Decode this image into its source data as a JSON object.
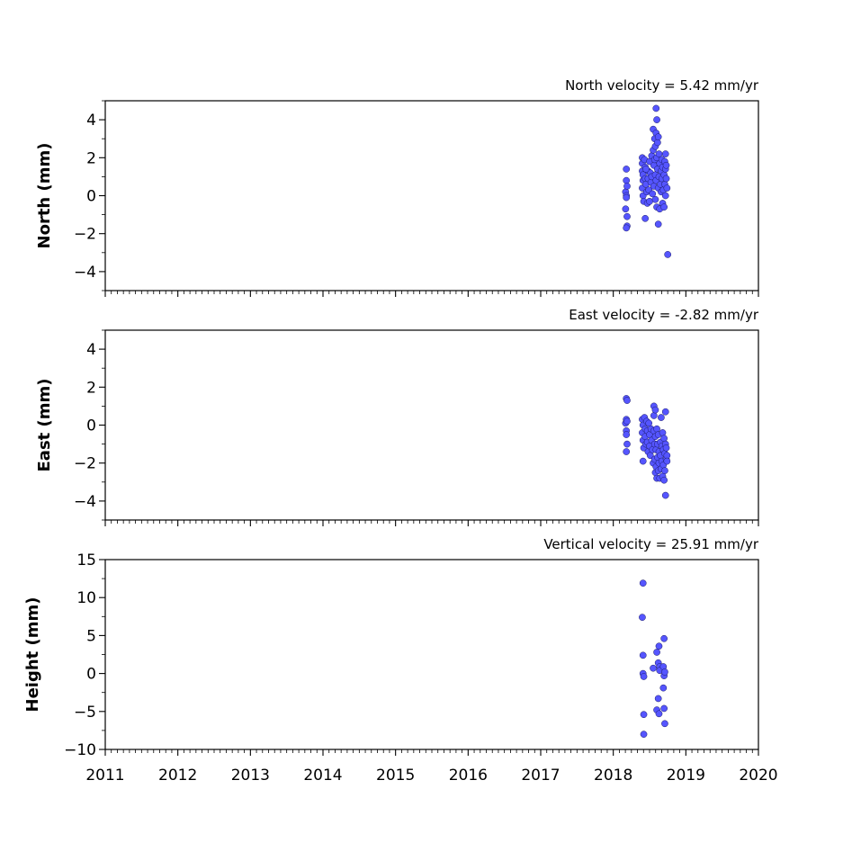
{
  "chart_data": [
    {
      "type": "scatter",
      "title": "North velocity = 5.42 mm/yr",
      "xlabel": "",
      "ylabel": "North (mm)",
      "xlim": [
        2011,
        2020
      ],
      "ylim": [
        -5,
        5
      ],
      "xticks": [
        "2011",
        "2012",
        "2013",
        "2014",
        "2015",
        "2016",
        "2017",
        "2018",
        "2019",
        "2020"
      ],
      "yticks": [
        "−4",
        "−2",
        "0",
        "2",
        "4"
      ],
      "x_tick_labels_visible": false,
      "grid": false,
      "marker_color": "#5555ff",
      "points": [
        [
          2018.18,
          1.4
        ],
        [
          2018.18,
          0.8
        ],
        [
          2018.17,
          0.2
        ],
        [
          2018.18,
          0.0
        ],
        [
          2018.18,
          -0.1
        ],
        [
          2018.17,
          -0.7
        ],
        [
          2018.19,
          -1.1
        ],
        [
          2018.19,
          -1.6
        ],
        [
          2018.18,
          -1.7
        ],
        [
          2018.19,
          0.5
        ],
        [
          2018.4,
          2.0
        ],
        [
          2018.4,
          1.7
        ],
        [
          2018.4,
          1.3
        ],
        [
          2018.41,
          1.1
        ],
        [
          2018.41,
          0.8
        ],
        [
          2018.4,
          0.4
        ],
        [
          2018.41,
          0.0
        ],
        [
          2018.42,
          -0.3
        ],
        [
          2018.44,
          -1.2
        ],
        [
          2018.43,
          1.9
        ],
        [
          2018.44,
          1.5
        ],
        [
          2018.44,
          0.9
        ],
        [
          2018.45,
          0.6
        ],
        [
          2018.46,
          0.2
        ],
        [
          2018.47,
          -0.4
        ],
        [
          2018.48,
          1.3
        ],
        [
          2018.48,
          0.9
        ],
        [
          2018.49,
          0.3
        ],
        [
          2018.5,
          -0.3
        ],
        [
          2018.5,
          1.8
        ],
        [
          2018.51,
          1.2
        ],
        [
          2018.52,
          0.7
        ],
        [
          2018.53,
          2.1
        ],
        [
          2018.53,
          1.0
        ],
        [
          2018.54,
          0.1
        ],
        [
          2018.55,
          3.5
        ],
        [
          2018.55,
          2.4
        ],
        [
          2018.56,
          1.6
        ],
        [
          2018.56,
          0.5
        ],
        [
          2018.57,
          3.0
        ],
        [
          2018.57,
          1.9
        ],
        [
          2018.58,
          2.6
        ],
        [
          2018.58,
          1.1
        ],
        [
          2018.58,
          -0.2
        ],
        [
          2018.59,
          4.6
        ],
        [
          2018.59,
          3.3
        ],
        [
          2018.59,
          0.8
        ],
        [
          2018.6,
          4.0
        ],
        [
          2018.6,
          2.0
        ],
        [
          2018.6,
          -0.6
        ],
        [
          2018.61,
          2.8
        ],
        [
          2018.61,
          1.4
        ],
        [
          2018.62,
          3.1
        ],
        [
          2018.62,
          0.4
        ],
        [
          2018.62,
          -1.5
        ],
        [
          2018.63,
          2.2
        ],
        [
          2018.63,
          1.0
        ],
        [
          2018.64,
          -0.7
        ],
        [
          2018.64,
          1.7
        ],
        [
          2018.65,
          0.6
        ],
        [
          2018.66,
          1.3
        ],
        [
          2018.66,
          0.2
        ],
        [
          2018.67,
          1.9
        ],
        [
          2018.67,
          0.9
        ],
        [
          2018.68,
          -0.4
        ],
        [
          2018.68,
          1.5
        ],
        [
          2018.69,
          0.3
        ],
        [
          2018.7,
          1.1
        ],
        [
          2018.7,
          -0.6
        ],
        [
          2018.71,
          1.8
        ],
        [
          2018.71,
          0.6
        ],
        [
          2018.72,
          2.2
        ],
        [
          2018.72,
          1.4
        ],
        [
          2018.72,
          0.0
        ],
        [
          2018.73,
          0.9
        ],
        [
          2018.73,
          1.6
        ],
        [
          2018.74,
          0.4
        ],
        [
          2018.75,
          -3.1
        ],
        [
          2018.45,
          1.4
        ]
      ]
    },
    {
      "type": "scatter",
      "title": "East velocity = -2.82 mm/yr",
      "xlabel": "",
      "ylabel": "East (mm)",
      "xlim": [
        2011,
        2020
      ],
      "ylim": [
        -5,
        5
      ],
      "xticks": [
        "2011",
        "2012",
        "2013",
        "2014",
        "2015",
        "2016",
        "2017",
        "2018",
        "2019",
        "2020"
      ],
      "yticks": [
        "−4",
        "−2",
        "0",
        "2",
        "4"
      ],
      "x_tick_labels_visible": false,
      "grid": false,
      "marker_color": "#5555ff",
      "points": [
        [
          2018.18,
          1.4
        ],
        [
          2018.19,
          1.3
        ],
        [
          2018.18,
          0.3
        ],
        [
          2018.17,
          0.1
        ],
        [
          2018.19,
          0.2
        ],
        [
          2018.18,
          -0.3
        ],
        [
          2018.18,
          -0.5
        ],
        [
          2018.19,
          -1.0
        ],
        [
          2018.18,
          -1.4
        ],
        [
          2018.4,
          0.3
        ],
        [
          2018.41,
          0.0
        ],
        [
          2018.4,
          -0.4
        ],
        [
          2018.41,
          -0.8
        ],
        [
          2018.42,
          -1.2
        ],
        [
          2018.41,
          -1.9
        ],
        [
          2018.43,
          0.4
        ],
        [
          2018.44,
          -0.2
        ],
        [
          2018.44,
          -0.6
        ],
        [
          2018.45,
          -1.0
        ],
        [
          2018.46,
          0.2
        ],
        [
          2018.47,
          -0.3
        ],
        [
          2018.47,
          -0.9
        ],
        [
          2018.48,
          -1.4
        ],
        [
          2018.49,
          0.1
        ],
        [
          2018.5,
          -0.5
        ],
        [
          2018.5,
          -1.1
        ],
        [
          2018.51,
          -1.6
        ],
        [
          2018.52,
          -0.2
        ],
        [
          2018.53,
          -0.8
        ],
        [
          2018.54,
          -1.3
        ],
        [
          2018.55,
          -2.0
        ],
        [
          2018.56,
          1.0
        ],
        [
          2018.56,
          0.5
        ],
        [
          2018.56,
          -0.3
        ],
        [
          2018.57,
          -1.0
        ],
        [
          2018.57,
          -1.8
        ],
        [
          2018.58,
          -2.5
        ],
        [
          2018.58,
          -0.6
        ],
        [
          2018.59,
          -1.3
        ],
        [
          2018.59,
          -2.2
        ],
        [
          2018.6,
          -2.8
        ],
        [
          2018.6,
          -0.2
        ],
        [
          2018.61,
          -1.0
        ],
        [
          2018.61,
          -1.7
        ],
        [
          2018.62,
          -2.4
        ],
        [
          2018.62,
          -0.5
        ],
        [
          2018.63,
          -1.4
        ],
        [
          2018.63,
          -2.0
        ],
        [
          2018.64,
          -2.8
        ],
        [
          2018.65,
          -0.9
        ],
        [
          2018.65,
          -1.6
        ],
        [
          2018.66,
          -2.3
        ],
        [
          2018.66,
          0.4
        ],
        [
          2018.67,
          -1.1
        ],
        [
          2018.67,
          -1.9
        ],
        [
          2018.68,
          -2.7
        ],
        [
          2018.68,
          -0.4
        ],
        [
          2018.69,
          -1.3
        ],
        [
          2018.69,
          -2.1
        ],
        [
          2018.7,
          -2.9
        ],
        [
          2018.7,
          -0.7
        ],
        [
          2018.71,
          -1.5
        ],
        [
          2018.71,
          -2.4
        ],
        [
          2018.72,
          0.7
        ],
        [
          2018.72,
          -1.0
        ],
        [
          2018.73,
          -1.8
        ],
        [
          2018.73,
          -1.2
        ],
        [
          2018.74,
          -1.6
        ],
        [
          2018.74,
          -1.9
        ],
        [
          2018.72,
          -3.7
        ],
        [
          2018.58,
          0.8
        ]
      ]
    },
    {
      "type": "scatter",
      "title": "Vertical velocity = 25.91 mm/yr",
      "xlabel": "",
      "ylabel": "Height (mm)",
      "xlim": [
        2011,
        2020
      ],
      "ylim": [
        -10,
        15
      ],
      "xticks": [
        "2011",
        "2012",
        "2013",
        "2014",
        "2015",
        "2016",
        "2017",
        "2018",
        "2019",
        "2020"
      ],
      "yticks": [
        "−10",
        "−5",
        "0",
        "5",
        "10",
        "15"
      ],
      "x_tick_labels_visible": true,
      "grid": false,
      "marker_color": "#5555ff",
      "points": [
        [
          2018.41,
          11.9
        ],
        [
          2018.4,
          7.4
        ],
        [
          2018.41,
          2.4
        ],
        [
          2018.41,
          0.0
        ],
        [
          2018.42,
          -0.4
        ],
        [
          2018.42,
          -5.4
        ],
        [
          2018.42,
          -8.0
        ],
        [
          2018.55,
          0.7
        ],
        [
          2018.6,
          2.8
        ],
        [
          2018.63,
          3.6
        ],
        [
          2018.62,
          1.4
        ],
        [
          2018.64,
          0.9
        ],
        [
          2018.64,
          0.4
        ],
        [
          2018.62,
          -3.3
        ],
        [
          2018.6,
          -4.8
        ],
        [
          2018.63,
          -5.3
        ],
        [
          2018.7,
          4.6
        ],
        [
          2018.69,
          0.9
        ],
        [
          2018.7,
          -0.3
        ],
        [
          2018.69,
          -1.9
        ],
        [
          2018.7,
          -4.6
        ],
        [
          2018.71,
          -6.6
        ],
        [
          2018.71,
          0.2
        ]
      ]
    }
  ]
}
